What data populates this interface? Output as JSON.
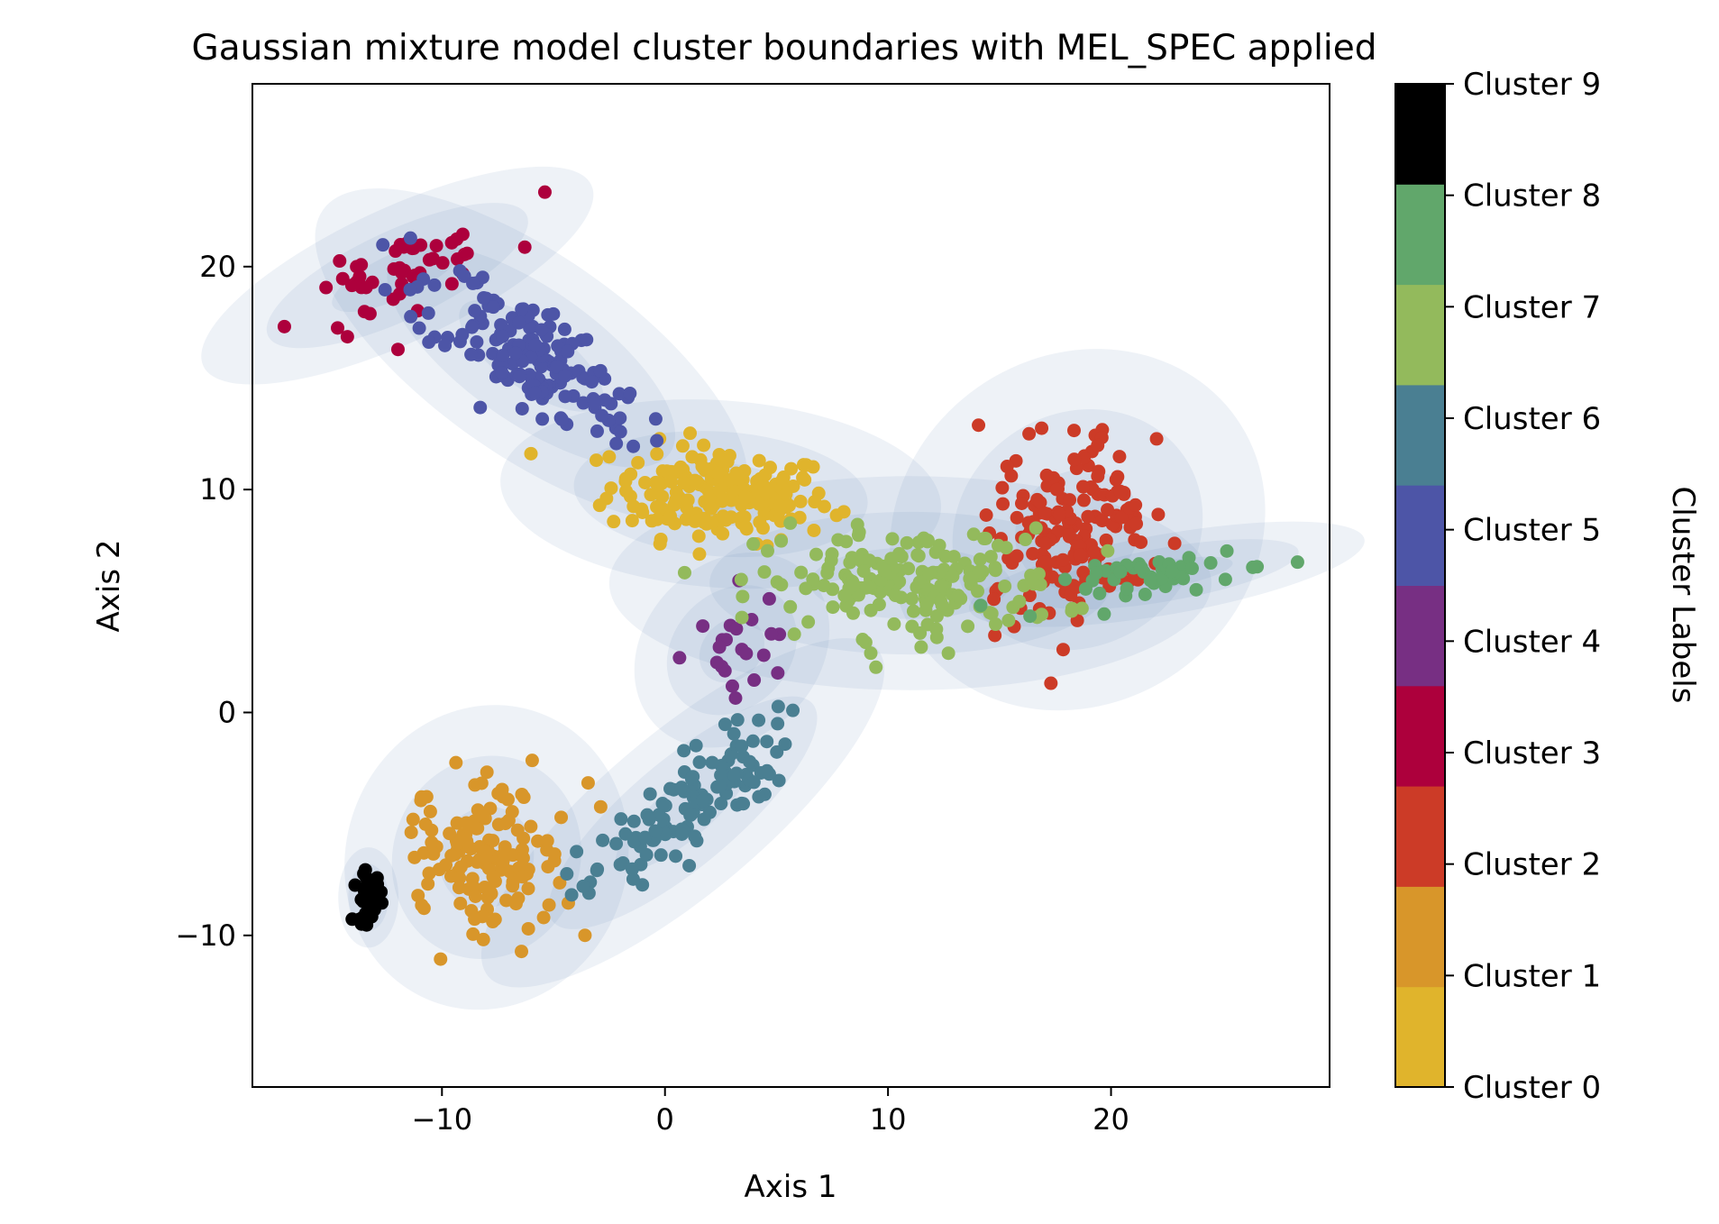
{
  "chart_data": {
    "type": "scatter",
    "title": "Gaussian mixture model cluster boundaries with MEL_SPEC applied",
    "xlabel": "Axis 1",
    "ylabel": "Axis 2",
    "xlim": [
      -18.5,
      29.8
    ],
    "ylim": [
      -16.8,
      28.2
    ],
    "x_ticks": [
      -10,
      0,
      10,
      20
    ],
    "y_ticks": [
      -10,
      0,
      10,
      20
    ],
    "x_tick_labels": [
      "−10",
      "0",
      "10",
      "20"
    ],
    "y_tick_labels": [
      "−10",
      "0",
      "10",
      "20"
    ],
    "grid": false,
    "colorbar": {
      "label": "Cluster Labels",
      "tick_labels": [
        "Cluster 0",
        "Cluster 1",
        "Cluster 2",
        "Cluster 3",
        "Cluster 4",
        "Cluster 5",
        "Cluster 6",
        "Cluster 7",
        "Cluster 8",
        "Cluster 9"
      ],
      "colors": [
        "#e0b42c",
        "#d8962a",
        "#cc3b27",
        "#ad003c",
        "#772f83",
        "#4d55a7",
        "#4a7f92",
        "#93ba5c",
        "#61a76b",
        "#000000"
      ]
    },
    "ellipse_color": "#7f9ac4",
    "clusters": [
      {
        "label": 0,
        "center": [
          2.5,
          9.8
        ],
        "std": [
          3.3,
          1.4
        ],
        "angle_deg": -4,
        "n": 190
      },
      {
        "label": 1,
        "center": [
          -8.0,
          -6.5
        ],
        "std": [
          2.3,
          2.1
        ],
        "angle_deg": 70,
        "n": 140
      },
      {
        "label": 2,
        "center": [
          18.5,
          8.2
        ],
        "std": [
          2.9,
          2.6
        ],
        "angle_deg": 35,
        "n": 170
      },
      {
        "label": 3,
        "center": [
          -12.0,
          19.6
        ],
        "std": [
          3.2,
          1.0
        ],
        "angle_deg": 25,
        "n": 50
      },
      {
        "label": 4,
        "center": [
          3.0,
          2.8
        ],
        "std": [
          1.6,
          1.3
        ],
        "angle_deg": 45,
        "n": 22
      },
      {
        "label": 5,
        "center": [
          -6.0,
          16.0
        ],
        "std": [
          3.8,
          1.5
        ],
        "angle_deg": -35,
        "n": 170
      },
      {
        "label": 6,
        "center": [
          0.8,
          -4.5
        ],
        "std": [
          3.8,
          1.2
        ],
        "angle_deg": 40,
        "n": 120
      },
      {
        "label": 7,
        "center": [
          11.0,
          5.8
        ],
        "std": [
          4.5,
          1.6
        ],
        "angle_deg": 0,
        "n": 180
      },
      {
        "label": 8,
        "center": [
          22.5,
          6.2
        ],
        "std": [
          3.0,
          0.6
        ],
        "angle_deg": 10,
        "n": 50
      },
      {
        "label": 9,
        "center": [
          -13.3,
          -8.3
        ],
        "std": [
          0.45,
          0.75
        ],
        "angle_deg": 0,
        "n": 30
      }
    ]
  }
}
